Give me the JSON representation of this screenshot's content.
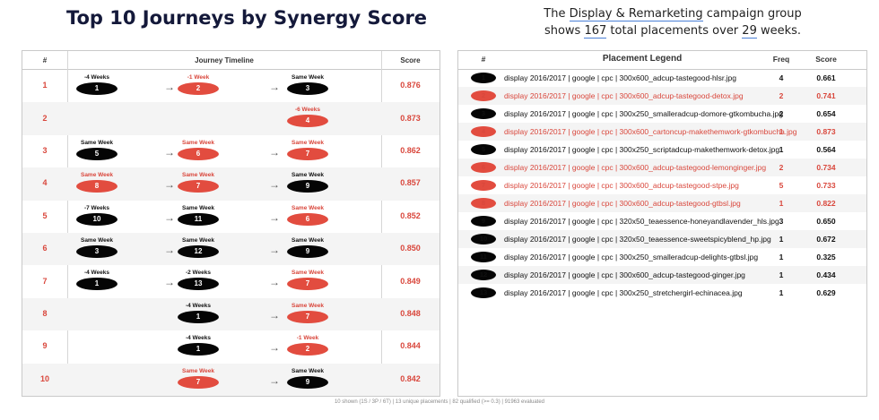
{
  "title": "Top 10 Journeys by Synergy Score",
  "subtitle": {
    "prefix": "The ",
    "group": "Display & Remarketing",
    "mid1": " campaign group",
    "line2_prefix": "shows ",
    "placements": "167",
    "mid2": " total placements over ",
    "weeks": "29",
    "suffix": " weeks."
  },
  "journey_table": {
    "headers": {
      "rank": "#",
      "timeline": "Journey Timeline",
      "score": "Score"
    },
    "arrow_glyph": "→",
    "rows": [
      {
        "rank": "1",
        "score": "0.876",
        "stops": [
          {
            "label": "-4 Weeks",
            "label_color": "black",
            "id": "1",
            "color": "black"
          },
          {
            "label": "-1 Week",
            "label_color": "red",
            "id": "2",
            "color": "red"
          },
          {
            "label": "Same Week",
            "label_color": "black",
            "id": "3",
            "color": "black"
          }
        ]
      },
      {
        "rank": "2",
        "score": "0.873",
        "stops": [
          null,
          null,
          {
            "label": "-6 Weeks",
            "label_color": "red",
            "id": "4",
            "color": "red"
          }
        ]
      },
      {
        "rank": "3",
        "score": "0.862",
        "stops": [
          {
            "label": "Same Week",
            "label_color": "black",
            "id": "5",
            "color": "black"
          },
          {
            "label": "Same Week",
            "label_color": "red",
            "id": "6",
            "color": "red"
          },
          {
            "label": "Same Week",
            "label_color": "red",
            "id": "7",
            "color": "red"
          }
        ]
      },
      {
        "rank": "4",
        "score": "0.857",
        "stops": [
          {
            "label": "Same Week",
            "label_color": "red",
            "id": "8",
            "color": "red"
          },
          {
            "label": "Same Week",
            "label_color": "red",
            "id": "7",
            "color": "red"
          },
          {
            "label": "Same Week",
            "label_color": "black",
            "id": "9",
            "color": "black"
          }
        ]
      },
      {
        "rank": "5",
        "score": "0.852",
        "stops": [
          {
            "label": "-7 Weeks",
            "label_color": "black",
            "id": "10",
            "color": "black"
          },
          {
            "label": "Same Week",
            "label_color": "black",
            "id": "11",
            "color": "black"
          },
          {
            "label": "Same Week",
            "label_color": "red",
            "id": "6",
            "color": "red"
          }
        ]
      },
      {
        "rank": "6",
        "score": "0.850",
        "stops": [
          {
            "label": "Same Week",
            "label_color": "black",
            "id": "3",
            "color": "black"
          },
          {
            "label": "Same Week",
            "label_color": "black",
            "id": "12",
            "color": "black"
          },
          {
            "label": "Same Week",
            "label_color": "black",
            "id": "9",
            "color": "black"
          }
        ]
      },
      {
        "rank": "7",
        "score": "0.849",
        "stops": [
          {
            "label": "-4 Weeks",
            "label_color": "black",
            "id": "1",
            "color": "black"
          },
          {
            "label": "-2 Weeks",
            "label_color": "black",
            "id": "13",
            "color": "black"
          },
          {
            "label": "Same Week",
            "label_color": "red",
            "id": "7",
            "color": "red"
          }
        ]
      },
      {
        "rank": "8",
        "score": "0.848",
        "stops": [
          null,
          {
            "label": "-4 Weeks",
            "label_color": "black",
            "id": "1",
            "color": "black"
          },
          {
            "label": "Same Week",
            "label_color": "red",
            "id": "7",
            "color": "red"
          }
        ]
      },
      {
        "rank": "9",
        "score": "0.844",
        "stops": [
          null,
          {
            "label": "-4 Weeks",
            "label_color": "black",
            "id": "1",
            "color": "black"
          },
          {
            "label": "-1 Week",
            "label_color": "red",
            "id": "2",
            "color": "red"
          }
        ]
      },
      {
        "rank": "10",
        "score": "0.842",
        "stops": [
          null,
          {
            "label": "Same Week",
            "label_color": "red",
            "id": "7",
            "color": "red"
          },
          {
            "label": "Same Week",
            "label_color": "black",
            "id": "9",
            "color": "black"
          }
        ]
      }
    ]
  },
  "legend": {
    "headers": {
      "rank": "#",
      "name": "Placement Legend",
      "freq": "Freq",
      "score": "Score"
    },
    "items": [
      {
        "id": "1",
        "color": "black",
        "name": "display 2016/2017 | google | cpc | 300x600_adcup-tastegood-hlsr.jpg",
        "freq": "4",
        "score": "0.661"
      },
      {
        "id": "2",
        "color": "red",
        "name": "display 2016/2017 | google | cpc | 300x600_adcup-tastegood-detox.jpg",
        "freq": "2",
        "score": "0.741"
      },
      {
        "id": "3",
        "color": "black",
        "name": "display 2016/2017 | google | cpc | 300x250_smalleradcup-domore-gtkombucha.jpg",
        "freq": "2",
        "score": "0.654"
      },
      {
        "id": "4",
        "color": "red",
        "name": "display 2016/2017 | google | cpc | 300x600_cartoncup-makethemwork-gtkombucha.jpg",
        "freq": "1",
        "score": "0.873"
      },
      {
        "id": "5",
        "color": "black",
        "name": "display 2016/2017 | google | cpc | 300x250_scriptadcup-makethemwork-detox.jpg",
        "freq": "1",
        "score": "0.564"
      },
      {
        "id": "6",
        "color": "red",
        "name": "display 2016/2017 | google | cpc | 300x600_adcup-tastegood-lemonginger.jpg",
        "freq": "2",
        "score": "0.734"
      },
      {
        "id": "7",
        "color": "red",
        "name": "display 2016/2017 | google | cpc | 300x600_adcup-tastegood-stpe.jpg",
        "freq": "5",
        "score": "0.733"
      },
      {
        "id": "8",
        "color": "red",
        "name": "display 2016/2017 | google | cpc | 300x600_adcup-tastegood-gtbsl.jpg",
        "freq": "1",
        "score": "0.822"
      },
      {
        "id": "9",
        "color": "black",
        "name": "display 2016/2017 | google | cpc | 320x50_teaessence-honeyandlavender_hls.jpg",
        "freq": "3",
        "score": "0.650"
      },
      {
        "id": "10",
        "color": "black",
        "name": "display 2016/2017 | google | cpc | 320x50_teaessence-sweetspicyblend_hp.jpg",
        "freq": "1",
        "score": "0.672"
      },
      {
        "id": "11",
        "color": "black",
        "name": "display 2016/2017 | google | cpc | 300x250_smalleradcup-delights-gtbsl.jpg",
        "freq": "1",
        "score": "0.325"
      },
      {
        "id": "12",
        "color": "black",
        "name": "display 2016/2017 | google | cpc | 300x600_adcup-tastegood-ginger.jpg",
        "freq": "1",
        "score": "0.434"
      },
      {
        "id": "13",
        "color": "black",
        "name": "display 2016/2017 | google | cpc | 300x250_stretchergirl-echinacea.jpg",
        "freq": "1",
        "score": "0.629"
      }
    ]
  },
  "footer": "10 shown (1S / 3P / 6T)  |  13 unique placements  |  82 qualified (>= 0.3)  |  91963 evaluated",
  "colors": {
    "red": "#e24c3f",
    "black": "#050505",
    "title": "#14193a"
  }
}
